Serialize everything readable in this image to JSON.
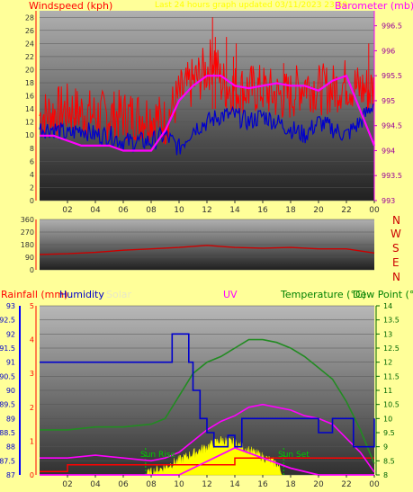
{
  "header": {
    "windspeed_label": "Windspeed (kph)",
    "banner": "Last 24 hours graph updated 03/11/2023 23:59",
    "barometer_label": "Barometer (mb)"
  },
  "lower_header": {
    "rainfall": "Rainfall (mm)",
    "humidity": "Humidity",
    "solar": "Solar",
    "uv": "UV",
    "temperature": "Temperature (°C)",
    "dewpoint": "Dew Point (°C)"
  },
  "annotations": {
    "sunrise": "Sun Rise",
    "sunset": "Sun Set"
  },
  "compass": [
    "N",
    "W",
    "S",
    "E",
    "N"
  ],
  "colors": {
    "windspeed": "#ff0000",
    "windavg": "#0000cc",
    "barometer": "#ff00ff",
    "direction": "#cc0000",
    "humidity": "#0000cc",
    "rain": "#ff0000",
    "uv": "#ff00ff",
    "temp": "#228b22",
    "solar": "#ffff00",
    "sunrise": "#00cc00"
  },
  "chart_data": [
    {
      "type": "line",
      "x_ticks": [
        "02",
        "04",
        "06",
        "08",
        "10",
        "12",
        "14",
        "16",
        "18",
        "20",
        "22",
        "00"
      ],
      "y_left": {
        "label": "Windspeed (kph)",
        "range": [
          0,
          29
        ],
        "ticks": [
          0,
          2,
          4,
          6,
          8,
          10,
          12,
          14,
          16,
          18,
          20,
          22,
          24,
          26,
          28
        ]
      },
      "y_right": {
        "label": "Barometer (mb)",
        "range": [
          993,
          996.8
        ],
        "ticks": [
          "993",
          "993.5",
          "994",
          "994.5",
          "995",
          "995.5",
          "996",
          "996.5"
        ]
      },
      "series": [
        {
          "name": "Windspeed",
          "axis": "left",
          "x": [
            0,
            2,
            4,
            6,
            8,
            9,
            10,
            11,
            12,
            12.5,
            13,
            14,
            15,
            16,
            17,
            18,
            19,
            20,
            21,
            22,
            23,
            24
          ],
          "y": [
            13,
            14,
            13,
            13,
            13,
            12,
            16,
            18,
            20,
            22,
            18,
            17,
            17,
            17,
            16,
            16,
            18,
            17,
            17,
            18,
            17,
            17
          ]
        },
        {
          "name": "Average wind",
          "axis": "left",
          "x": [
            0,
            1,
            2,
            3,
            4,
            5,
            6,
            7,
            8,
            9,
            10,
            11,
            12,
            13,
            14,
            15,
            16,
            17,
            18,
            19,
            20,
            21,
            22,
            23,
            24
          ],
          "y": [
            11,
            11,
            10,
            11,
            10,
            10,
            9,
            9,
            9,
            10,
            8,
            11,
            12,
            13,
            13,
            12,
            13,
            12,
            11,
            10,
            12,
            11,
            10,
            12,
            15
          ]
        },
        {
          "name": "Barometer",
          "axis": "right",
          "x": [
            0,
            1,
            2,
            3,
            4,
            5,
            6,
            7,
            8,
            9,
            10,
            11,
            12,
            13,
            14,
            15,
            16,
            17,
            18,
            19,
            20,
            21,
            22,
            23,
            24
          ],
          "y": [
            994.3,
            994.3,
            994.2,
            994.1,
            994.1,
            994.1,
            994.0,
            994.0,
            994.0,
            994.4,
            995.0,
            995.3,
            995.5,
            995.5,
            995.3,
            995.25,
            995.3,
            995.35,
            995.3,
            995.3,
            995.2,
            995.4,
            995.5,
            994.8,
            994.1
          ]
        }
      ]
    },
    {
      "type": "line",
      "x_ticks": [],
      "y_left": {
        "range": [
          0,
          360
        ],
        "ticks": [
          0,
          90,
          180,
          270,
          360
        ]
      },
      "series": [
        {
          "name": "Wind direction",
          "x": [
            0,
            2,
            4,
            6,
            8,
            10,
            12,
            14,
            16,
            18,
            20,
            22,
            24
          ],
          "y": [
            110,
            115,
            125,
            140,
            150,
            160,
            175,
            160,
            155,
            160,
            150,
            150,
            120
          ]
        }
      ]
    },
    {
      "type": "line",
      "x_ticks": [
        "02",
        "04",
        "06",
        "08",
        "10",
        "12",
        "14",
        "16",
        "18",
        "20",
        "22",
        "00"
      ],
      "y_left_rain": {
        "range": [
          0,
          5
        ],
        "ticks": [
          0,
          1,
          2,
          3,
          4,
          5
        ]
      },
      "y_left_humidity": {
        "range": [
          87,
          93
        ],
        "ticks": [
          "87",
          "87.5",
          "88",
          "88.5",
          "89",
          "89.5",
          "90",
          "90.5",
          "91",
          "91.5",
          "92",
          "92.5",
          "93"
        ]
      },
      "y_right": {
        "range": [
          8,
          14
        ],
        "ticks": [
          "8",
          "8.5",
          "9",
          "9.5",
          "10",
          "10.5",
          "11",
          "11.5",
          "12",
          "12.5",
          "13",
          "13.5",
          "14"
        ]
      },
      "series": [
        {
          "name": "Humidity",
          "axis": "humidity",
          "x": [
            0,
            9.3,
            9.5,
            10.5,
            10.7,
            11,
            11.5,
            12,
            12.5,
            13,
            13.5,
            14,
            14.5,
            15,
            15.5,
            16,
            17,
            18,
            19,
            20,
            21,
            22,
            22.5,
            24
          ],
          "y": [
            91,
            91,
            92,
            92,
            91,
            90,
            89,
            88.5,
            88,
            88,
            88.4,
            88,
            89,
            89,
            89,
            89,
            89,
            89,
            89,
            88.5,
            89,
            89,
            88,
            89
          ]
        },
        {
          "name": "Temperature",
          "axis": "right",
          "x": [
            0,
            2,
            4,
            6,
            8,
            9,
            10,
            11,
            12,
            13,
            14,
            15,
            16,
            17,
            18,
            19,
            20,
            21,
            22,
            23,
            24
          ],
          "y": [
            9.6,
            9.6,
            9.7,
            9.7,
            9.8,
            10,
            10.8,
            11.6,
            12,
            12.2,
            12.5,
            12.8,
            12.8,
            12.7,
            12.5,
            12.2,
            11.8,
            11.4,
            10.6,
            9.6,
            8.4
          ]
        },
        {
          "name": "Dew Point",
          "axis": "right",
          "x": [
            0,
            2,
            4,
            6,
            8,
            9,
            10,
            11,
            12,
            13,
            14,
            15,
            16,
            17,
            18,
            19,
            20,
            21,
            22,
            23,
            24
          ],
          "y": [
            8.6,
            8.6,
            8.7,
            8.6,
            8.5,
            8.6,
            8.8,
            9.2,
            9.6,
            9.9,
            10.1,
            10.4,
            10.5,
            10.4,
            10.3,
            10.1,
            10.0,
            9.8,
            9.3,
            8.8,
            8.1
          ]
        },
        {
          "name": "UV",
          "axis": "rain",
          "x": [
            0,
            2,
            4,
            6,
            8,
            10,
            12,
            14,
            16,
            18,
            20,
            22,
            24
          ],
          "y": [
            0,
            0,
            0,
            0,
            0,
            0,
            0.4,
            0.8,
            0.5,
            0.2,
            0,
            0,
            0
          ]
        },
        {
          "name": "Rainfall",
          "axis": "rain",
          "x": [
            0,
            2,
            4,
            6,
            8,
            10,
            12,
            14,
            16,
            18,
            20,
            22,
            24
          ],
          "y": [
            0.1,
            0.3,
            0.3,
            0.3,
            0.3,
            0.3,
            0.3,
            0.5,
            0.5,
            0.5,
            0.5,
            0.5,
            0.5
          ]
        },
        {
          "name": "Solar",
          "axis": "rain",
          "x": [
            7.7,
            9,
            10,
            11,
            12,
            13,
            14,
            15,
            16,
            17,
            17.4
          ],
          "y": [
            0,
            0.2,
            0.4,
            0.6,
            0.8,
            1.0,
            0.9,
            0.7,
            0.5,
            0.3,
            0
          ]
        }
      ]
    }
  ]
}
